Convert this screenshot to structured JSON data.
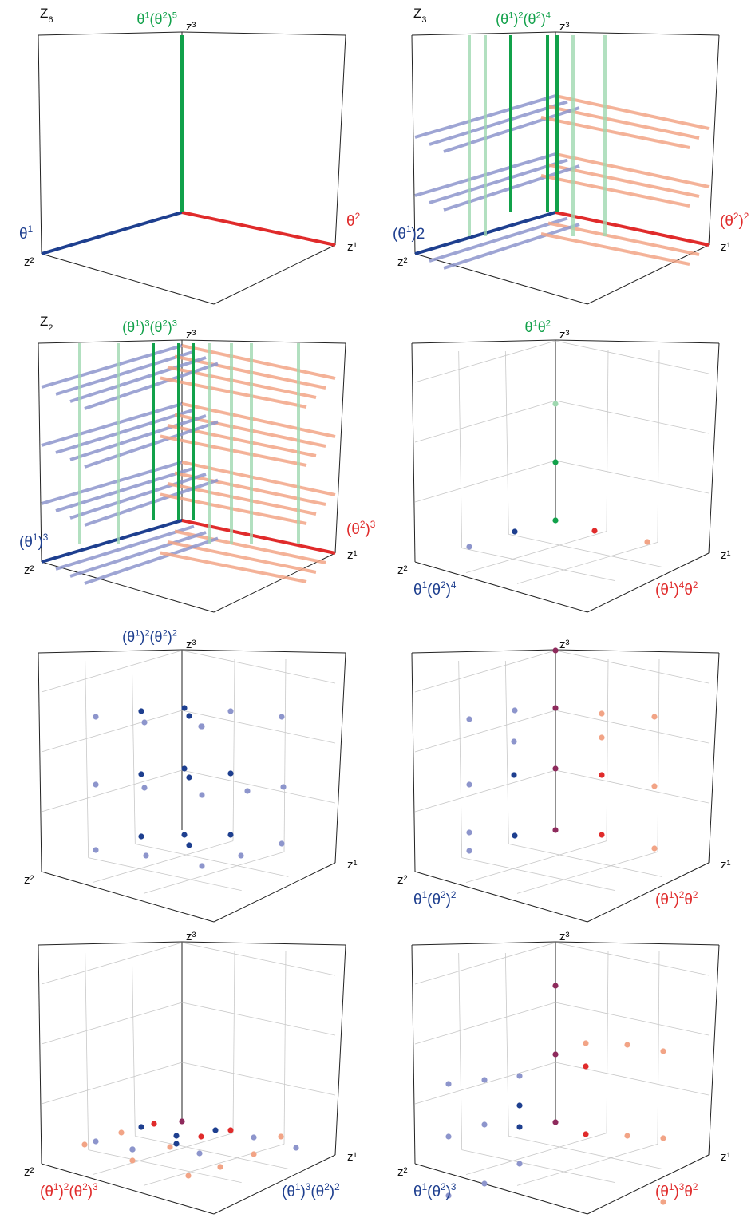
{
  "colors": {
    "blue": "#1e3f8f",
    "blue_light": "#8d95cc",
    "red": "#e02b2b",
    "red_light": "#f2a486",
    "green": "#11a14a",
    "green_light": "#9fd8b0",
    "purple": "#8e2a5c"
  },
  "panels": [
    {
      "id": "z6",
      "group": {
        "base": "Z",
        "sub": "6"
      },
      "title": {
        "color": "green",
        "parts": [
          {
            "t": "θ"
          },
          {
            "t": "1",
            "sup": true
          },
          {
            "t": "(θ"
          },
          {
            "t": "2",
            "sup": true
          },
          {
            "t": ")"
          },
          {
            "t": "5",
            "sup": true
          }
        ]
      },
      "label_left": {
        "color": "blue",
        "parts": [
          {
            "t": "θ"
          },
          {
            "t": "1",
            "sup": true
          }
        ]
      },
      "label_right": {
        "color": "red",
        "parts": [
          {
            "t": "θ"
          },
          {
            "t": "2",
            "sup": true
          }
        ]
      },
      "label_bottom_left": null,
      "label_bottom_right": null,
      "axes": {
        "z1": "z¹",
        "z2": "z²",
        "z3": "z³"
      },
      "style": "lines",
      "levels": 1
    },
    {
      "id": "z3",
      "group": {
        "base": "Z",
        "sub": "3"
      },
      "title": {
        "color": "green",
        "parts": [
          {
            "t": "(θ"
          },
          {
            "t": "1",
            "sup": true
          },
          {
            "t": ")"
          },
          {
            "t": "2",
            "sup": true
          },
          {
            "t": "(θ"
          },
          {
            "t": "2",
            "sup": true
          },
          {
            "t": ")"
          },
          {
            "t": "4",
            "sup": true
          }
        ]
      },
      "label_left": {
        "color": "blue",
        "parts": [
          {
            "t": "(θ"
          },
          {
            "t": "1",
            "sup": true
          },
          {
            "t": ")2"
          }
        ]
      },
      "label_right": {
        "color": "red",
        "parts": [
          {
            "t": "(θ"
          },
          {
            "t": "2",
            "sup": true
          },
          {
            "t": ")"
          },
          {
            "t": "2",
            "sup": true
          }
        ]
      },
      "label_bottom_left": null,
      "label_bottom_right": null,
      "axes": {
        "z1": "z¹",
        "z2": "z²",
        "z3": "z³"
      },
      "style": "lines",
      "levels": 3
    },
    {
      "id": "z2",
      "group": {
        "base": "Z",
        "sub": "2"
      },
      "title": {
        "color": "green",
        "parts": [
          {
            "t": "(θ"
          },
          {
            "t": "1",
            "sup": true
          },
          {
            "t": ")"
          },
          {
            "t": "3",
            "sup": true
          },
          {
            "t": "(θ"
          },
          {
            "t": "2",
            "sup": true
          },
          {
            "t": ")"
          },
          {
            "t": "3",
            "sup": true
          }
        ]
      },
      "label_left": {
        "color": "blue",
        "parts": [
          {
            "t": "(θ"
          },
          {
            "t": "1",
            "sup": true
          },
          {
            "t": ")"
          },
          {
            "t": "3",
            "sup": true
          }
        ]
      },
      "label_right": {
        "color": "red",
        "parts": [
          {
            "t": "(θ"
          },
          {
            "t": "2",
            "sup": true
          },
          {
            "t": ")"
          },
          {
            "t": "3",
            "sup": true
          }
        ]
      },
      "label_bottom_left": null,
      "label_bottom_right": null,
      "axes": {
        "z1": "z¹",
        "z2": "z²",
        "z3": "z³"
      },
      "style": "lines",
      "levels": 4
    },
    {
      "id": "p4",
      "group": null,
      "title": {
        "color": "green",
        "parts": [
          {
            "t": "θ"
          },
          {
            "t": "1",
            "sup": true
          },
          {
            "t": "θ"
          },
          {
            "t": "2",
            "sup": true
          }
        ]
      },
      "label_left": null,
      "label_right": null,
      "label_bottom_left": {
        "color": "blue",
        "parts": [
          {
            "t": "θ"
          },
          {
            "t": "1",
            "sup": true
          },
          {
            "t": "(θ"
          },
          {
            "t": "2",
            "sup": true
          },
          {
            "t": ")"
          },
          {
            "t": "4",
            "sup": true
          }
        ]
      },
      "label_bottom_right": {
        "color": "red",
        "parts": [
          {
            "t": "(θ"
          },
          {
            "t": "1",
            "sup": true
          },
          {
            "t": ")"
          },
          {
            "t": "4",
            "sup": true
          },
          {
            "t": "θ"
          },
          {
            "t": "2",
            "sup": true
          }
        ]
      },
      "axes": {
        "z1": "z¹",
        "z2": "z²",
        "z3": "z³"
      },
      "style": "dots"
    },
    {
      "id": "p5",
      "group": null,
      "title": {
        "color": "blue",
        "parts": [
          {
            "t": "(θ"
          },
          {
            "t": "1",
            "sup": true
          },
          {
            "t": ")"
          },
          {
            "t": "2",
            "sup": true
          },
          {
            "t": "(θ"
          },
          {
            "t": "2",
            "sup": true
          },
          {
            "t": ")"
          },
          {
            "t": "2",
            "sup": true
          }
        ]
      },
      "label_left": null,
      "label_right": null,
      "label_bottom_left": null,
      "label_bottom_right": null,
      "axes": {
        "z1": "z¹",
        "z2": "z²",
        "z3": "z³"
      },
      "style": "dots"
    },
    {
      "id": "p6",
      "group": null,
      "title": null,
      "label_left": null,
      "label_right": null,
      "label_bottom_left": {
        "color": "blue",
        "parts": [
          {
            "t": "θ"
          },
          {
            "t": "1",
            "sup": true
          },
          {
            "t": "(θ"
          },
          {
            "t": "2",
            "sup": true
          },
          {
            "t": ")"
          },
          {
            "t": "2",
            "sup": true
          }
        ]
      },
      "label_bottom_right": {
        "color": "red",
        "parts": [
          {
            "t": "(θ"
          },
          {
            "t": "1",
            "sup": true
          },
          {
            "t": ")"
          },
          {
            "t": "2",
            "sup": true
          },
          {
            "t": "θ"
          },
          {
            "t": "2",
            "sup": true
          }
        ]
      },
      "axes": {
        "z1": "z¹",
        "z2": "z²",
        "z3": "z³"
      },
      "style": "dots"
    },
    {
      "id": "p7",
      "group": null,
      "title": null,
      "label_left": null,
      "label_right": null,
      "label_bottom_left": {
        "color": "red",
        "parts": [
          {
            "t": "(θ"
          },
          {
            "t": "1",
            "sup": true
          },
          {
            "t": ")"
          },
          {
            "t": "2",
            "sup": true
          },
          {
            "t": "(θ"
          },
          {
            "t": "2",
            "sup": true
          },
          {
            "t": ")"
          },
          {
            "t": "3",
            "sup": true
          }
        ]
      },
      "label_bottom_right": {
        "color": "blue",
        "parts": [
          {
            "t": "(θ"
          },
          {
            "t": "1",
            "sup": true
          },
          {
            "t": ")"
          },
          {
            "t": "3",
            "sup": true
          },
          {
            "t": "(θ"
          },
          {
            "t": "2",
            "sup": true
          },
          {
            "t": ")"
          },
          {
            "t": "2",
            "sup": true
          }
        ]
      },
      "axes": {
        "z1": "z¹",
        "z2": "z²",
        "z3": "z³"
      },
      "style": "dots"
    },
    {
      "id": "p8",
      "group": null,
      "title": null,
      "label_left": null,
      "label_right": null,
      "label_bottom_left": {
        "color": "blue",
        "parts": [
          {
            "t": "θ"
          },
          {
            "t": "1",
            "sup": true
          },
          {
            "t": "(θ"
          },
          {
            "t": "2",
            "sup": true
          },
          {
            "t": ")"
          },
          {
            "t": "3",
            "sup": true
          }
        ]
      },
      "label_bottom_right": {
        "color": "red",
        "parts": [
          {
            "t": "(θ"
          },
          {
            "t": "1",
            "sup": true
          },
          {
            "t": ")"
          },
          {
            "t": "3",
            "sup": true
          },
          {
            "t": "θ"
          },
          {
            "t": "2",
            "sup": true
          }
        ]
      },
      "axes": {
        "z1": "z¹",
        "z2": "z²",
        "z3": "z³"
      },
      "style": "dots"
    }
  ]
}
